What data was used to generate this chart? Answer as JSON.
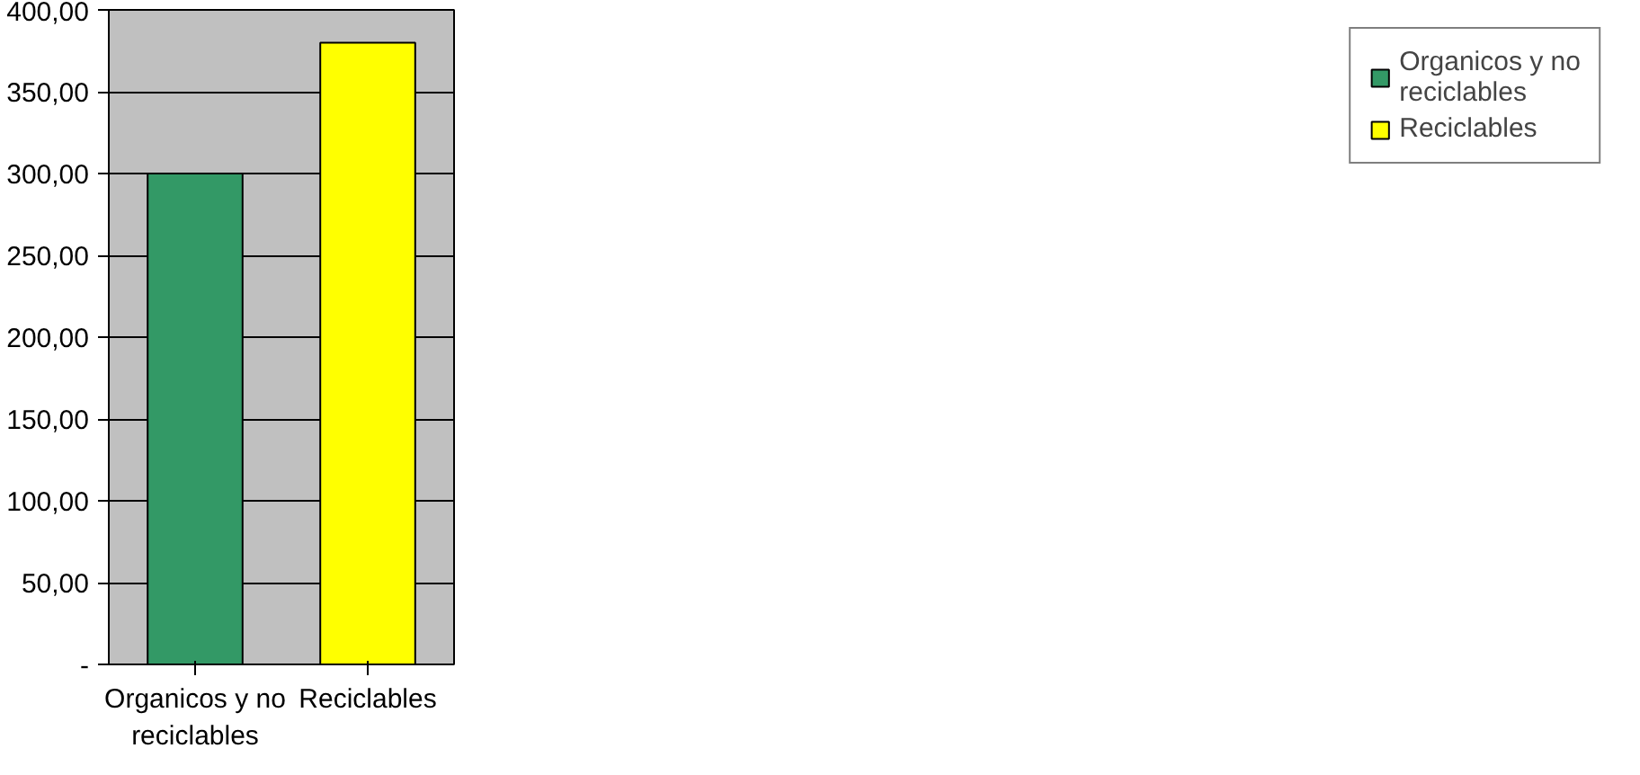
{
  "chart_data": {
    "type": "bar",
    "categories": [
      "Organicos y no reciclables",
      "Reciclables"
    ],
    "series": [
      {
        "name": "Organicos y no reciclables",
        "color": "#339966",
        "values": [
          300,
          null
        ]
      },
      {
        "name": "Reciclables",
        "color": "#ffff00",
        "values": [
          null,
          380
        ]
      }
    ],
    "ylim": [
      0,
      400
    ],
    "yticks": [
      {
        "value": 0,
        "label": "-"
      },
      {
        "value": 50,
        "label": "50,00"
      },
      {
        "value": 100,
        "label": "100,00"
      },
      {
        "value": 150,
        "label": "150,00"
      },
      {
        "value": 200,
        "label": "200,00"
      },
      {
        "value": 250,
        "label": "250,00"
      },
      {
        "value": 300,
        "label": "300,00"
      },
      {
        "value": 350,
        "label": "350,00"
      },
      {
        "value": 400,
        "label": "400,00"
      }
    ],
    "grid": "y",
    "legend": "right"
  }
}
